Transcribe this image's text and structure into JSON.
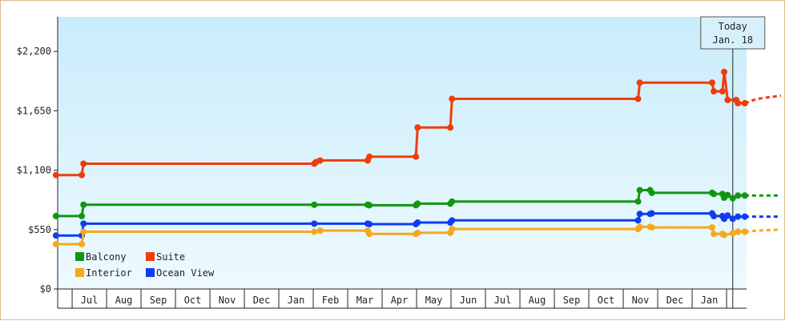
{
  "chart_data": {
    "type": "line",
    "step": true,
    "ylim": [
      0,
      2520
    ],
    "yticks": [
      {
        "value": 0,
        "label": "$0"
      },
      {
        "value": 550,
        "label": "$550"
      },
      {
        "value": 1100,
        "label": "$1,100"
      },
      {
        "value": 1650,
        "label": "$1,650"
      },
      {
        "value": 2200,
        "label": "$2,200"
      }
    ],
    "months": [
      "Jul",
      "Aug",
      "Sep",
      "Oct",
      "Nov",
      "Dec",
      "Jan",
      "Feb",
      "Mar",
      "Apr",
      "May",
      "Jun",
      "Jul",
      "Aug",
      "Sep",
      "Oct",
      "Nov",
      "Dec",
      "Jan"
    ],
    "today": {
      "line1": "Today",
      "line2": "Jan. 18",
      "x": 19.6
    },
    "background": {
      "top": "#c9ecfa",
      "bottom": "#eefaff"
    },
    "legend": [
      {
        "series": "Balcony",
        "label": "Balcony"
      },
      {
        "series": "Suite",
        "label": "Suite"
      },
      {
        "series": "Interior",
        "label": "Interior"
      },
      {
        "series": "Ocean View",
        "label": "Ocean View"
      }
    ],
    "series": [
      {
        "name": "Suite",
        "color": "#f03c0c",
        "points": [
          [
            -0.05,
            1055
          ],
          [
            0.7,
            1055
          ],
          [
            0.75,
            1160
          ],
          [
            7.45,
            1160
          ],
          [
            7.5,
            1175
          ],
          [
            7.62,
            1190
          ],
          [
            9.0,
            1190
          ],
          [
            9.05,
            1225
          ],
          [
            10.4,
            1225
          ],
          [
            10.45,
            1495
          ],
          [
            11.4,
            1495
          ],
          [
            11.45,
            1760
          ],
          [
            16.85,
            1760
          ],
          [
            16.9,
            1910
          ],
          [
            19.0,
            1910
          ],
          [
            19.05,
            1830
          ],
          [
            19.3,
            1830
          ],
          [
            19.35,
            2010
          ],
          [
            19.45,
            1750
          ],
          [
            19.7,
            1750
          ],
          [
            19.75,
            1720
          ],
          [
            19.95,
            1720
          ]
        ],
        "projection": [
          [
            19.95,
            1720
          ],
          [
            20.3,
            1760
          ],
          [
            21.0,
            1790
          ]
        ]
      },
      {
        "name": "Balcony",
        "color": "#129612",
        "points": [
          [
            -0.05,
            675
          ],
          [
            0.7,
            675
          ],
          [
            0.75,
            780
          ],
          [
            7.45,
            780
          ],
          [
            9.0,
            780
          ],
          [
            9.05,
            775
          ],
          [
            10.4,
            775
          ],
          [
            10.45,
            790
          ],
          [
            11.4,
            790
          ],
          [
            11.45,
            810
          ],
          [
            16.85,
            810
          ],
          [
            16.9,
            915
          ],
          [
            17.2,
            915
          ],
          [
            17.25,
            890
          ],
          [
            19.0,
            890
          ],
          [
            19.05,
            880
          ],
          [
            19.3,
            880
          ],
          [
            19.35,
            845
          ],
          [
            19.45,
            870
          ],
          [
            19.6,
            840
          ],
          [
            19.75,
            865
          ],
          [
            19.95,
            865
          ]
        ],
        "projection": [
          [
            19.95,
            865
          ],
          [
            20.3,
            865
          ],
          [
            21.0,
            865
          ]
        ]
      },
      {
        "name": "Ocean View",
        "color": "#0f3cf0",
        "points": [
          [
            -0.05,
            495
          ],
          [
            0.7,
            495
          ],
          [
            0.75,
            605
          ],
          [
            7.45,
            605
          ],
          [
            9.0,
            605
          ],
          [
            9.05,
            600
          ],
          [
            10.4,
            600
          ],
          [
            10.45,
            615
          ],
          [
            11.4,
            615
          ],
          [
            11.45,
            635
          ],
          [
            16.85,
            635
          ],
          [
            16.9,
            695
          ],
          [
            17.2,
            695
          ],
          [
            17.25,
            700
          ],
          [
            19.0,
            700
          ],
          [
            19.05,
            675
          ],
          [
            19.3,
            675
          ],
          [
            19.35,
            650
          ],
          [
            19.45,
            680
          ],
          [
            19.6,
            650
          ],
          [
            19.75,
            670
          ],
          [
            19.95,
            670
          ]
        ],
        "projection": [
          [
            19.95,
            670
          ],
          [
            20.3,
            670
          ],
          [
            21.0,
            670
          ]
        ]
      },
      {
        "name": "Interior",
        "color": "#f7a81a",
        "points": [
          [
            -0.05,
            415
          ],
          [
            0.7,
            415
          ],
          [
            0.75,
            530
          ],
          [
            7.45,
            530
          ],
          [
            7.62,
            540
          ],
          [
            9.0,
            540
          ],
          [
            9.05,
            510
          ],
          [
            10.4,
            510
          ],
          [
            10.45,
            520
          ],
          [
            11.4,
            520
          ],
          [
            11.45,
            555
          ],
          [
            16.85,
            555
          ],
          [
            16.9,
            575
          ],
          [
            17.2,
            575
          ],
          [
            17.25,
            570
          ],
          [
            19.0,
            570
          ],
          [
            19.05,
            510
          ],
          [
            19.3,
            510
          ],
          [
            19.35,
            500
          ],
          [
            19.6,
            515
          ],
          [
            19.75,
            530
          ],
          [
            19.95,
            530
          ]
        ],
        "projection": [
          [
            19.95,
            530
          ],
          [
            20.3,
            540
          ],
          [
            21.0,
            550
          ]
        ]
      }
    ]
  }
}
